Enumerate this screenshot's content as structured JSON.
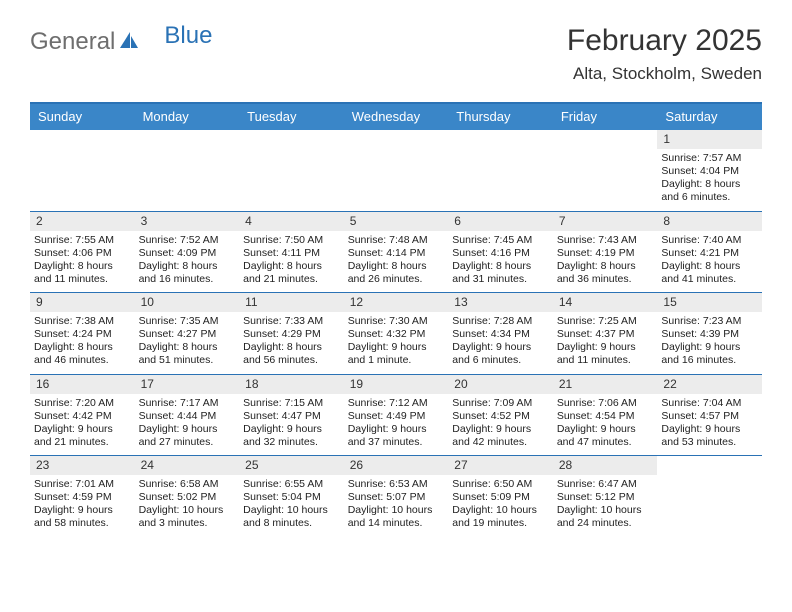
{
  "logo": {
    "part1": "General",
    "part2": "Blue"
  },
  "title": "February 2025",
  "location": "Alta, Stockholm, Sweden",
  "colors": {
    "header_bg": "#3a86c8",
    "border": "#2a72b5",
    "daynum_bg": "#ececec",
    "text": "#222222",
    "logo_gray": "#6e6e6e",
    "logo_blue": "#2a72b5"
  },
  "day_names": [
    "Sunday",
    "Monday",
    "Tuesday",
    "Wednesday",
    "Thursday",
    "Friday",
    "Saturday"
  ],
  "labels": {
    "sunrise": "Sunrise:",
    "sunset": "Sunset:",
    "daylight": "Daylight:"
  },
  "weeks": [
    [
      {
        "blank": true
      },
      {
        "blank": true
      },
      {
        "blank": true
      },
      {
        "blank": true
      },
      {
        "blank": true
      },
      {
        "blank": true
      },
      {
        "day": "1",
        "sunrise": "7:57 AM",
        "sunset": "4:04 PM",
        "daylight": "8 hours and 6 minutes."
      }
    ],
    [
      {
        "day": "2",
        "sunrise": "7:55 AM",
        "sunset": "4:06 PM",
        "daylight": "8 hours and 11 minutes."
      },
      {
        "day": "3",
        "sunrise": "7:52 AM",
        "sunset": "4:09 PM",
        "daylight": "8 hours and 16 minutes."
      },
      {
        "day": "4",
        "sunrise": "7:50 AM",
        "sunset": "4:11 PM",
        "daylight": "8 hours and 21 minutes."
      },
      {
        "day": "5",
        "sunrise": "7:48 AM",
        "sunset": "4:14 PM",
        "daylight": "8 hours and 26 minutes."
      },
      {
        "day": "6",
        "sunrise": "7:45 AM",
        "sunset": "4:16 PM",
        "daylight": "8 hours and 31 minutes."
      },
      {
        "day": "7",
        "sunrise": "7:43 AM",
        "sunset": "4:19 PM",
        "daylight": "8 hours and 36 minutes."
      },
      {
        "day": "8",
        "sunrise": "7:40 AM",
        "sunset": "4:21 PM",
        "daylight": "8 hours and 41 minutes."
      }
    ],
    [
      {
        "day": "9",
        "sunrise": "7:38 AM",
        "sunset": "4:24 PM",
        "daylight": "8 hours and 46 minutes."
      },
      {
        "day": "10",
        "sunrise": "7:35 AM",
        "sunset": "4:27 PM",
        "daylight": "8 hours and 51 minutes."
      },
      {
        "day": "11",
        "sunrise": "7:33 AM",
        "sunset": "4:29 PM",
        "daylight": "8 hours and 56 minutes."
      },
      {
        "day": "12",
        "sunrise": "7:30 AM",
        "sunset": "4:32 PM",
        "daylight": "9 hours and 1 minute."
      },
      {
        "day": "13",
        "sunrise": "7:28 AM",
        "sunset": "4:34 PM",
        "daylight": "9 hours and 6 minutes."
      },
      {
        "day": "14",
        "sunrise": "7:25 AM",
        "sunset": "4:37 PM",
        "daylight": "9 hours and 11 minutes."
      },
      {
        "day": "15",
        "sunrise": "7:23 AM",
        "sunset": "4:39 PM",
        "daylight": "9 hours and 16 minutes."
      }
    ],
    [
      {
        "day": "16",
        "sunrise": "7:20 AM",
        "sunset": "4:42 PM",
        "daylight": "9 hours and 21 minutes."
      },
      {
        "day": "17",
        "sunrise": "7:17 AM",
        "sunset": "4:44 PM",
        "daylight": "9 hours and 27 minutes."
      },
      {
        "day": "18",
        "sunrise": "7:15 AM",
        "sunset": "4:47 PM",
        "daylight": "9 hours and 32 minutes."
      },
      {
        "day": "19",
        "sunrise": "7:12 AM",
        "sunset": "4:49 PM",
        "daylight": "9 hours and 37 minutes."
      },
      {
        "day": "20",
        "sunrise": "7:09 AM",
        "sunset": "4:52 PM",
        "daylight": "9 hours and 42 minutes."
      },
      {
        "day": "21",
        "sunrise": "7:06 AM",
        "sunset": "4:54 PM",
        "daylight": "9 hours and 47 minutes."
      },
      {
        "day": "22",
        "sunrise": "7:04 AM",
        "sunset": "4:57 PM",
        "daylight": "9 hours and 53 minutes."
      }
    ],
    [
      {
        "day": "23",
        "sunrise": "7:01 AM",
        "sunset": "4:59 PM",
        "daylight": "9 hours and 58 minutes."
      },
      {
        "day": "24",
        "sunrise": "6:58 AM",
        "sunset": "5:02 PM",
        "daylight": "10 hours and 3 minutes."
      },
      {
        "day": "25",
        "sunrise": "6:55 AM",
        "sunset": "5:04 PM",
        "daylight": "10 hours and 8 minutes."
      },
      {
        "day": "26",
        "sunrise": "6:53 AM",
        "sunset": "5:07 PM",
        "daylight": "10 hours and 14 minutes."
      },
      {
        "day": "27",
        "sunrise": "6:50 AM",
        "sunset": "5:09 PM",
        "daylight": "10 hours and 19 minutes."
      },
      {
        "day": "28",
        "sunrise": "6:47 AM",
        "sunset": "5:12 PM",
        "daylight": "10 hours and 24 minutes."
      },
      {
        "blank": true
      }
    ]
  ]
}
